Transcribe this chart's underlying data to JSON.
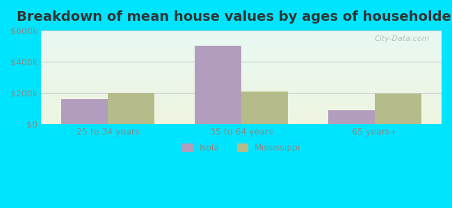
{
  "title": "Breakdown of mean house values by ages of householders",
  "categories": [
    "25 to 34 years",
    "35 to 64 years",
    "65 years+"
  ],
  "isola_values": [
    160000,
    500000,
    90000
  ],
  "mississippi_values": [
    200000,
    210000,
    195000
  ],
  "isola_color": "#b39dbe",
  "mississippi_color": "#b5bc8a",
  "ylim": [
    0,
    600000
  ],
  "yticks": [
    0,
    200000,
    400000,
    600000
  ],
  "ytick_labels": [
    "$0",
    "$200k",
    "$400k",
    "$600k"
  ],
  "bar_width": 0.35,
  "legend_labels": [
    "Isola",
    "Mississippi"
  ],
  "watermark": "City-Data.com",
  "title_fontsize": 14,
  "tick_color": "#888888",
  "grid_color": "#cccccc",
  "outer_bg": "#00e5ff"
}
